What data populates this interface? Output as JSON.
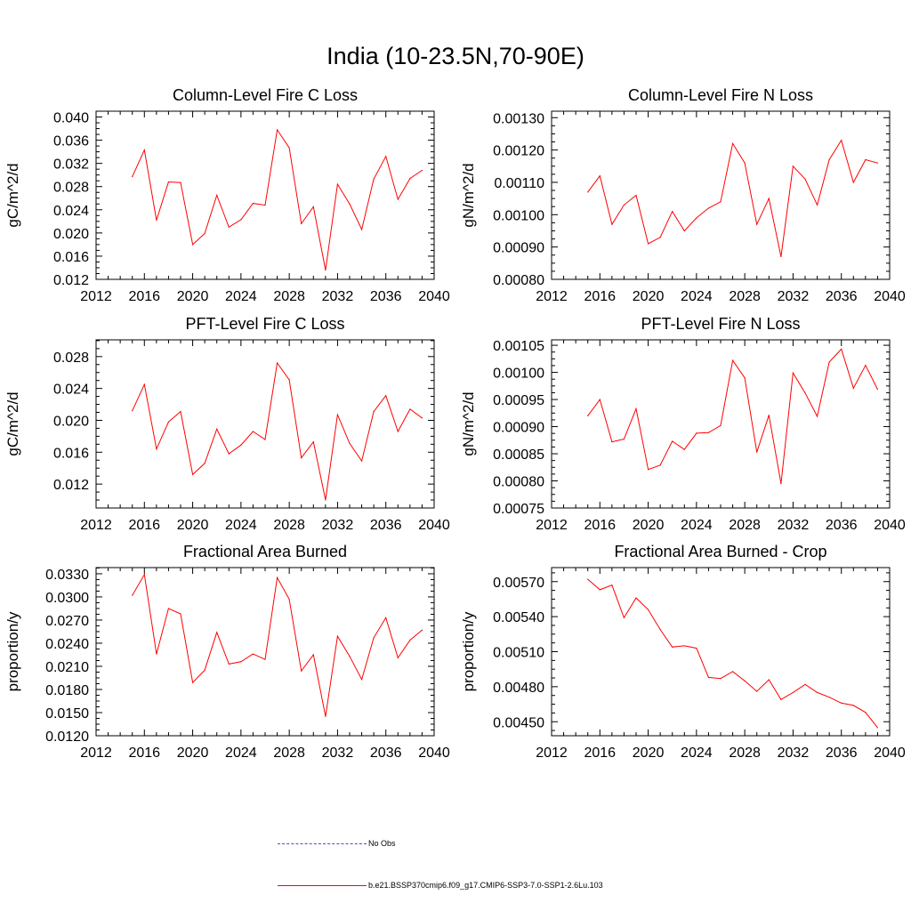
{
  "page_title": "India (10-23.5N,70-90E)",
  "colors": {
    "series": "#ff0000",
    "no_obs": "#4a4ad0",
    "axes": "#000000"
  },
  "legend": [
    {
      "label": "No Obs",
      "style": "dashed"
    },
    {
      "label": "b.e21.BSSP370cmip6.f09_g17.CMIP6-SSP3-7.0-SSP1-2.6Lu.103",
      "style": "solid"
    }
  ],
  "chart_data": [
    {
      "type": "line",
      "title": "Column-Level Fire C Loss",
      "xlabel": "",
      "ylabel": "gC/m^2/d",
      "xlim": [
        2012,
        2040
      ],
      "ylim": [
        0.012,
        0.041
      ],
      "xticks": [
        "2012",
        "2016",
        "2020",
        "2024",
        "2028",
        "2032",
        "2036",
        "2040"
      ],
      "yticks": [
        "0.012",
        "0.016",
        "0.020",
        "0.024",
        "0.028",
        "0.032",
        "0.036",
        "0.040"
      ],
      "x": [
        2015,
        2016,
        2017,
        2018,
        2019,
        2020,
        2021,
        2022,
        2023,
        2024,
        2025,
        2026,
        2027,
        2028,
        2029,
        2030,
        2031,
        2032,
        2033,
        2034,
        2035,
        2036,
        2037,
        2038,
        2039
      ],
      "series": [
        {
          "name": "b.e21.BSSP370cmip6.f09_g17.CMIP6-SSP3-7.0-SSP1-2.6Lu.103",
          "values": [
            0.0297,
            0.0343,
            0.0222,
            0.0288,
            0.0287,
            0.018,
            0.0199,
            0.0265,
            0.021,
            0.0223,
            0.0251,
            0.0248,
            0.0378,
            0.0347,
            0.0216,
            0.0245,
            0.0136,
            0.0284,
            0.025,
            0.0206,
            0.0293,
            0.0332,
            0.0258,
            0.0294,
            0.0308
          ]
        }
      ]
    },
    {
      "type": "line",
      "title": "Column-Level Fire N Loss",
      "xlabel": "",
      "ylabel": "gN/m^2/d",
      "xlim": [
        2012,
        2040
      ],
      "ylim": [
        0.0008,
        0.00132
      ],
      "xticks": [
        "2012",
        "2016",
        "2020",
        "2024",
        "2028",
        "2032",
        "2036",
        "2040"
      ],
      "yticks": [
        "0.00080",
        "0.00090",
        "0.00100",
        "0.00110",
        "0.00120",
        "0.00130"
      ],
      "x": [
        2015,
        2016,
        2017,
        2018,
        2019,
        2020,
        2021,
        2022,
        2023,
        2024,
        2025,
        2026,
        2027,
        2028,
        2029,
        2030,
        2031,
        2032,
        2033,
        2034,
        2035,
        2036,
        2037,
        2038,
        2039
      ],
      "series": [
        {
          "name": "b.e21.BSSP370cmip6.f09_g17.CMIP6-SSP3-7.0-SSP1-2.6Lu.103",
          "values": [
            0.00107,
            0.00112,
            0.00097,
            0.00103,
            0.00106,
            0.00091,
            0.00093,
            0.00101,
            0.00095,
            0.00099,
            0.00102,
            0.00104,
            0.00122,
            0.00116,
            0.00097,
            0.00105,
            0.00087,
            0.00115,
            0.00111,
            0.00103,
            0.00117,
            0.00123,
            0.0011,
            0.00117,
            0.00116
          ]
        }
      ]
    },
    {
      "type": "line",
      "title": "PFT-Level Fire C Loss",
      "xlabel": "",
      "ylabel": "gC/m^2/d",
      "xlim": [
        2012,
        2040
      ],
      "ylim": [
        0.009,
        0.0301
      ],
      "xticks": [
        "2012",
        "2016",
        "2020",
        "2024",
        "2028",
        "2032",
        "2036",
        "2040"
      ],
      "yticks": [
        "0.012",
        "0.016",
        "0.020",
        "0.024",
        "0.028"
      ],
      "x": [
        2015,
        2016,
        2017,
        2018,
        2019,
        2020,
        2021,
        2022,
        2023,
        2024,
        2025,
        2026,
        2027,
        2028,
        2029,
        2030,
        2031,
        2032,
        2033,
        2034,
        2035,
        2036,
        2037,
        2038,
        2039
      ],
      "series": [
        {
          "name": "b.e21.BSSP370cmip6.f09_g17.CMIP6-SSP3-7.0-SSP1-2.6Lu.103",
          "values": [
            0.0212,
            0.0245,
            0.0164,
            0.0198,
            0.0211,
            0.0132,
            0.0146,
            0.0189,
            0.0158,
            0.0169,
            0.0186,
            0.0176,
            0.0272,
            0.0251,
            0.0153,
            0.0173,
            0.01,
            0.0207,
            0.0171,
            0.0149,
            0.0211,
            0.0231,
            0.0186,
            0.0214,
            0.0203
          ]
        }
      ]
    },
    {
      "type": "line",
      "title": "PFT-Level Fire N Loss",
      "xlabel": "",
      "ylabel": "gN/m^2/d",
      "xlim": [
        2012,
        2040
      ],
      "ylim": [
        0.00075,
        0.00106
      ],
      "xticks": [
        "2012",
        "2016",
        "2020",
        "2024",
        "2028",
        "2032",
        "2036",
        "2040"
      ],
      "yticks": [
        "0.00075",
        "0.00080",
        "0.00085",
        "0.00090",
        "0.00095",
        "0.00100",
        "0.00105"
      ],
      "x": [
        2015,
        2016,
        2017,
        2018,
        2019,
        2020,
        2021,
        2022,
        2023,
        2024,
        2025,
        2026,
        2027,
        2028,
        2029,
        2030,
        2031,
        2032,
        2033,
        2034,
        2035,
        2036,
        2037,
        2038,
        2039
      ],
      "series": [
        {
          "name": "b.e21.BSSP370cmip6.f09_g17.CMIP6-SSP3-7.0-SSP1-2.6Lu.103",
          "values": [
            0.00092,
            0.00095,
            0.000872,
            0.000877,
            0.000933,
            0.000821,
            0.000829,
            0.000873,
            0.000858,
            0.000888,
            0.000889,
            0.000902,
            0.001022,
            0.00099,
            0.000853,
            0.000921,
            0.000795,
            0.000999,
            0.000962,
            0.000919,
            0.001019,
            0.001043,
            0.000971,
            0.001013,
            0.000969
          ]
        }
      ]
    },
    {
      "type": "line",
      "title": "Fractional Area Burned",
      "xlabel": "",
      "ylabel": "proportion/y",
      "xlim": [
        2012,
        2040
      ],
      "ylim": [
        0.012,
        0.0338
      ],
      "xticks": [
        "2012",
        "2016",
        "2020",
        "2024",
        "2028",
        "2032",
        "2036",
        "2040"
      ],
      "yticks": [
        "0.0120",
        "0.0150",
        "0.0180",
        "0.0210",
        "0.0240",
        "0.0270",
        "0.0300",
        "0.0330"
      ],
      "x": [
        2015,
        2016,
        2017,
        2018,
        2019,
        2020,
        2021,
        2022,
        2023,
        2024,
        2025,
        2026,
        2027,
        2028,
        2029,
        2030,
        2031,
        2032,
        2033,
        2034,
        2035,
        2036,
        2037,
        2038,
        2039
      ],
      "series": [
        {
          "name": "b.e21.BSSP370cmip6.f09_g17.CMIP6-SSP3-7.0-SSP1-2.6Lu.103",
          "values": [
            0.0302,
            0.0329,
            0.0226,
            0.0285,
            0.0278,
            0.0189,
            0.0205,
            0.0254,
            0.0213,
            0.0216,
            0.0226,
            0.0219,
            0.0325,
            0.0297,
            0.0204,
            0.0225,
            0.0145,
            0.0249,
            0.0223,
            0.0193,
            0.0247,
            0.0273,
            0.0221,
            0.0244,
            0.0257
          ]
        }
      ]
    },
    {
      "type": "line",
      "title": "Fractional Area Burned - Crop",
      "xlabel": "",
      "ylabel": "proportion/y",
      "xlim": [
        2012,
        2040
      ],
      "ylim": [
        0.00438,
        0.00582
      ],
      "xticks": [
        "2012",
        "2016",
        "2020",
        "2024",
        "2028",
        "2032",
        "2036",
        "2040"
      ],
      "yticks": [
        "0.00450",
        "0.00480",
        "0.00510",
        "0.00540",
        "0.00570"
      ],
      "x": [
        2015,
        2016,
        2017,
        2018,
        2019,
        2020,
        2021,
        2022,
        2023,
        2024,
        2025,
        2026,
        2027,
        2028,
        2029,
        2030,
        2031,
        2032,
        2033,
        2034,
        2035,
        2036,
        2037,
        2038,
        2039
      ],
      "series": [
        {
          "name": "b.e21.BSSP370cmip6.f09_g17.CMIP6-SSP3-7.0-SSP1-2.6Lu.103",
          "values": [
            0.00572,
            0.00563,
            0.00567,
            0.00539,
            0.00556,
            0.00546,
            0.00529,
            0.00514,
            0.00515,
            0.00513,
            0.00488,
            0.00487,
            0.00493,
            0.00485,
            0.00476,
            0.00486,
            0.00469,
            0.00475,
            0.00482,
            0.00475,
            0.00471,
            0.00466,
            0.00464,
            0.00458,
            0.00445
          ]
        }
      ]
    }
  ]
}
